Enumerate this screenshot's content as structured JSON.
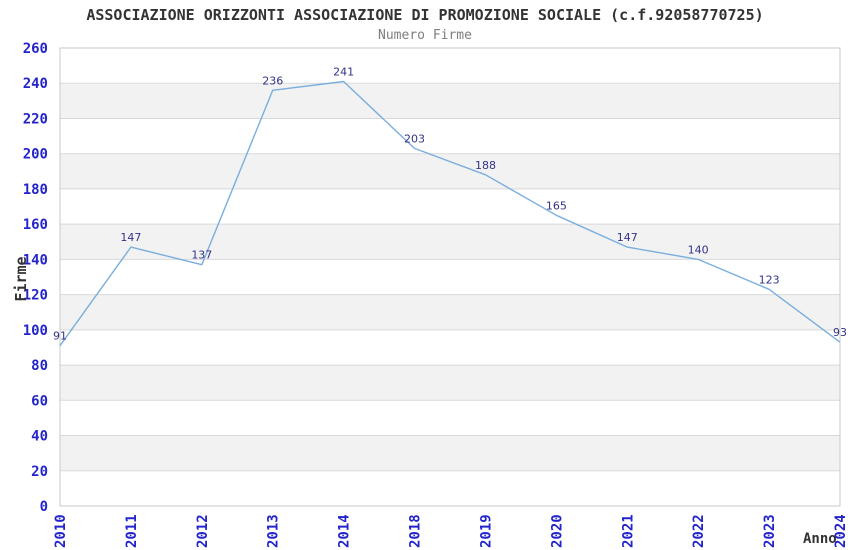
{
  "chart_data": {
    "type": "line",
    "title": "ASSOCIAZIONE ORIZZONTI ASSOCIAZIONE DI PROMOZIONE SOCIALE (c.f.92058770725)",
    "subtitle": "Numero Firme",
    "xlabel": "Anno",
    "ylabel": "Firme",
    "categories": [
      "2010",
      "2011",
      "2012",
      "2013",
      "2014",
      "2018",
      "2019",
      "2020",
      "2021",
      "2022",
      "2023",
      "2024"
    ],
    "series": [
      {
        "name": "Numero Firme",
        "values": [
          91,
          147,
          137,
          236,
          241,
          203,
          188,
          165,
          147,
          140,
          123,
          93
        ]
      }
    ],
    "yticks": [
      0,
      20,
      40,
      60,
      80,
      100,
      120,
      140,
      160,
      180,
      200,
      220,
      240,
      260
    ],
    "ylim": [
      0,
      260
    ],
    "ytick_step": 20,
    "grid": "horizontal",
    "background_style": "alternating-horizontal-bands",
    "legend": "none",
    "colors": {
      "line": "#7aaede",
      "data_label": "#333388",
      "tick_label": "#2424cc",
      "title": "#333333",
      "subtitle": "#7f7f7f",
      "band": "#f2f2f2",
      "grid": "#d9d9d9",
      "frame": "#c9c9c9",
      "axis_label": "#333333",
      "background": "#ffffff"
    }
  }
}
